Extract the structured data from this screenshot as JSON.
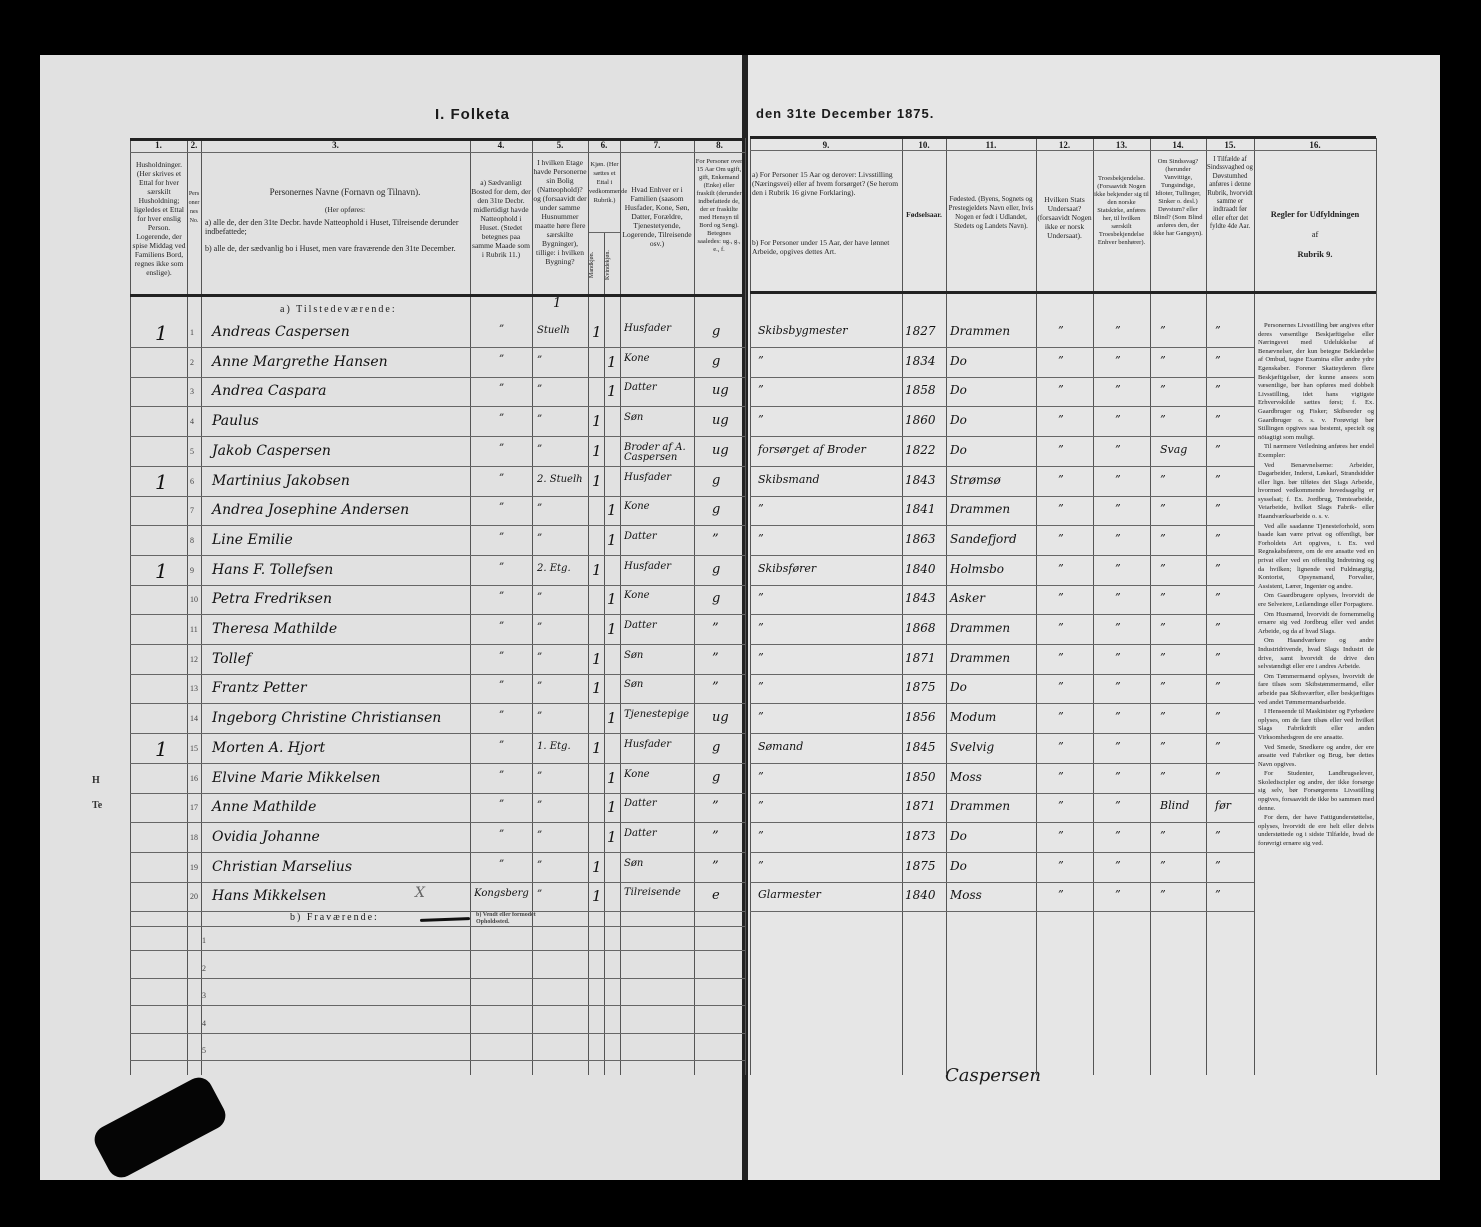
{
  "title": {
    "left": "I. Folketa",
    "right": "den 31te December 1875."
  },
  "columns": {
    "numbers": [
      "1.",
      "2.",
      "3.",
      "4.",
      "5.",
      "6.",
      "7.",
      "8.",
      "9.",
      "10.",
      "11.",
      "12.",
      "13.",
      "14.",
      "15.",
      "16."
    ],
    "col1": "Husholdninger. (Her skrives et Ettal for hver særskilt Husholdning; ligeledes et Ettal for hver enslig Person. Logerende, der spise Middag ved Familiens Bord, regnes ikke som enslige).",
    "col2": "Personernes No.",
    "col3_title": "Personernes Navne (Fornavn og Tilnavn).",
    "col3_sub": "(Her opføres:",
    "col3_a": "a) alle de, der den 31te Decbr. havde Natteophold i Huset, Tilreisende derunder indbefattede;",
    "col3_b": "b) alle de, der sædvanlig bo i Huset, men vare fraværende den 31te December.",
    "col4": "a) Sædvanligt Bosted for dem, der den 31te Decbr. midlertidigt havde Natteophold i Huset. (Stedet betegnes paa samme Maade som i Rubrik 11.)",
    "col5": "I hvilken Etage havde Personerne sin Bolig (Natteophold)? og (forsaavidt der under samme Husnummer maatte høre flere særskilte Bygninger), tillige: i hvilken Bygning?",
    "col6": "Kjøn. (Her sættes et Ettal i vedkommende Rubrik.)",
    "col6_male": "Mandkjøn.",
    "col6_female": "Kvindekjøn.",
    "col7": "Hvad Enhver er i Familien (saasom Husfader, Kone, Søn, Datter, Forældre, Tjenestetyende, Logerende, Tilreisende osv.)",
    "col8": "For Personer over 15 Aar Om ugift, gift, Enkemand (Enke) eller fraskilt (derunder indbefattede de, der er fraskilte med Hensyn til Bord og Seng). Betegnes saaledes: ug., g., e., f.",
    "col9_a": "a) For Personer 15 Aar og derover: Livsstilling (Næringsvei) eller af hvem forsørget? (Se herom den i Rubrik 16 givne Forklaring).",
    "col9_b": "b) For Personer under 15 Aar, der have lønnet Arbeide, opgives dettes Art.",
    "col10": "Fødselsaar.",
    "col11": "Fødested. (Byens, Sognets og Prestegjeldets Navn eller, hvis Nogen er født i Udlandet, Stedets og Landets Navn).",
    "col12": "Hvilken Stats Undersaat? (forsaavidt Nogen ikke er norsk Undersaat).",
    "col13": "Troesbekjendelse. (Forsaavidt Nogen ikke bekjender sig til den norske Statskirke, anføres her, til hvilken særskilt Troesbekjendelse Enhver benhører).",
    "col14": "Om Sindssvag? (herunder Vanvittige, Tungsindige, Idioter, Tullinger, Sinker o. desl.) Døvstum? eller Blind? (Som Blind anføres den, der ikke har Gangsyn).",
    "col15": "I Tilfælde af Sindssvaghed og Døvstumhed anføres i denne Rubrik, hvorvidt samme er indtraadt før eller efter det fyldte 4de Aar.",
    "col16_title": "Regler for Udfyldningen",
    "col16_of": "af",
    "col16_rubrik": "Rubrik 9."
  },
  "sections": {
    "present": "a) Tilstedeværende:",
    "absent": "b) Fraværende:",
    "absent_note": "b) Vendt eller formodet Opholdssted."
  },
  "present_top_mark": "1",
  "rows": [
    {
      "no": "1",
      "hh": "1",
      "name": "Andreas Caspersen",
      "c4": "”",
      "c5": "Stuelh",
      "m": "1",
      "f": "",
      "rel": "Husfader",
      "civ": "g",
      "occ": "Skibsbygmester",
      "year": "1827",
      "place": "Drammen",
      "c12": "”",
      "c13": "”",
      "c14": "”",
      "c15": "”"
    },
    {
      "no": "2",
      "hh": "",
      "name": "Anne Margrethe Hansen",
      "c4": "”",
      "c5": "”",
      "m": "",
      "f": "1",
      "rel": "Kone",
      "civ": "g",
      "occ": "”",
      "year": "1834",
      "place": "Do",
      "c12": "”",
      "c13": "”",
      "c14": "”",
      "c15": "”"
    },
    {
      "no": "3",
      "hh": "",
      "name": "Andrea Caspara",
      "c4": "”",
      "c5": "”",
      "m": "",
      "f": "1",
      "rel": "Datter",
      "civ": "ug",
      "occ": "”",
      "year": "1858",
      "place": "Do",
      "c12": "”",
      "c13": "”",
      "c14": "”",
      "c15": "”"
    },
    {
      "no": "4",
      "hh": "",
      "name": "Paulus",
      "c4": "”",
      "c5": "”",
      "m": "1",
      "f": "",
      "rel": "Søn",
      "civ": "ug",
      "occ": "”",
      "year": "1860",
      "place": "Do",
      "c12": "”",
      "c13": "”",
      "c14": "”",
      "c15": "”"
    },
    {
      "no": "5",
      "hh": "",
      "name": "Jakob Caspersen",
      "c4": "”",
      "c5": "”",
      "m": "1",
      "f": "",
      "rel": "Broder af A. Caspersen",
      "civ": "ug",
      "occ": "forsørget af Broder",
      "year": "1822",
      "place": "Do",
      "c12": "”",
      "c13": "”",
      "c14": "Svag",
      "c15": "”"
    },
    {
      "no": "6",
      "hh": "1",
      "name": "Martinius Jakobsen",
      "c4": "”",
      "c5": "2. Stuelh",
      "m": "1",
      "f": "",
      "rel": "Husfader",
      "civ": "g",
      "occ": "Skibsmand",
      "year": "1843",
      "place": "Strømsø",
      "c12": "”",
      "c13": "”",
      "c14": "”",
      "c15": "”"
    },
    {
      "no": "7",
      "hh": "",
      "name": "Andrea Josephine Andersen",
      "c4": "”",
      "c5": "”",
      "m": "",
      "f": "1",
      "rel": "Kone",
      "civ": "g",
      "occ": "”",
      "year": "1841",
      "place": "Drammen",
      "c12": "”",
      "c13": "”",
      "c14": "”",
      "c15": "”"
    },
    {
      "no": "8",
      "hh": "",
      "name": "Line Emilie",
      "c4": "”",
      "c5": "”",
      "m": "",
      "f": "1",
      "rel": "Datter",
      "civ": "”",
      "occ": "”",
      "year": "1863",
      "place": "Sandefjord",
      "c12": "”",
      "c13": "”",
      "c14": "”",
      "c15": "”"
    },
    {
      "no": "9",
      "hh": "1",
      "name": "Hans F. Tollefsen",
      "c4": "”",
      "c5": "2. Etg.",
      "m": "1",
      "f": "",
      "rel": "Husfader",
      "civ": "g",
      "occ": "Skibsfører",
      "year": "1840",
      "place": "Holmsbo",
      "c12": "”",
      "c13": "”",
      "c14": "”",
      "c15": "”"
    },
    {
      "no": "10",
      "hh": "",
      "name": "Petra Fredriksen",
      "c4": "”",
      "c5": "”",
      "m": "",
      "f": "1",
      "rel": "Kone",
      "civ": "g",
      "occ": "”",
      "year": "1843",
      "place": "Asker",
      "c12": "”",
      "c13": "”",
      "c14": "”",
      "c15": "”"
    },
    {
      "no": "11",
      "hh": "",
      "name": "Theresa Mathilde",
      "c4": "”",
      "c5": "”",
      "m": "",
      "f": "1",
      "rel": "Datter",
      "civ": "”",
      "occ": "”",
      "year": "1868",
      "place": "Drammen",
      "c12": "”",
      "c13": "”",
      "c14": "”",
      "c15": "”"
    },
    {
      "no": "12",
      "hh": "",
      "name": "Tollef",
      "c4": "”",
      "c5": "”",
      "m": "1",
      "f": "",
      "rel": "Søn",
      "civ": "”",
      "occ": "”",
      "year": "1871",
      "place": "Drammen",
      "c12": "”",
      "c13": "”",
      "c14": "”",
      "c15": "”"
    },
    {
      "no": "13",
      "hh": "",
      "name": "Frantz Petter",
      "c4": "”",
      "c5": "”",
      "m": "1",
      "f": "",
      "rel": "Søn",
      "civ": "”",
      "occ": "”",
      "year": "1875",
      "place": "Do",
      "c12": "”",
      "c13": "”",
      "c14": "”",
      "c15": "”"
    },
    {
      "no": "14",
      "hh": "",
      "name": "Ingeborg Christine Christiansen",
      "c4": "”",
      "c5": "”",
      "m": "",
      "f": "1",
      "rel": "Tjenestepige",
      "civ": "ug",
      "occ": "”",
      "year": "1856",
      "place": "Modum",
      "c12": "”",
      "c13": "”",
      "c14": "”",
      "c15": "”"
    },
    {
      "no": "15",
      "hh": "1",
      "name": "Morten A. Hjort",
      "c4": "”",
      "c5": "1. Etg.",
      "m": "1",
      "f": "",
      "rel": "Husfader",
      "civ": "g",
      "occ": "Sømand",
      "year": "1845",
      "place": "Svelvig",
      "c12": "”",
      "c13": "”",
      "c14": "”",
      "c15": "”"
    },
    {
      "no": "16",
      "hh": "",
      "name": "Elvine Marie Mikkelsen",
      "c4": "”",
      "c5": "”",
      "m": "",
      "f": "1",
      "rel": "Kone",
      "civ": "g",
      "occ": "”",
      "year": "1850",
      "place": "Moss",
      "c12": "”",
      "c13": "”",
      "c14": "”",
      "c15": "”"
    },
    {
      "no": "17",
      "hh": "",
      "name": "Anne Mathilde",
      "c4": "”",
      "c5": "”",
      "m": "",
      "f": "1",
      "rel": "Datter",
      "civ": "”",
      "occ": "”",
      "year": "1871",
      "place": "Drammen",
      "c12": "”",
      "c13": "”",
      "c14": "Blind",
      "c15": "før"
    },
    {
      "no": "18",
      "hh": "",
      "name": "Ovidia Johanne",
      "c4": "”",
      "c5": "”",
      "m": "",
      "f": "1",
      "rel": "Datter",
      "civ": "”",
      "occ": "”",
      "year": "1873",
      "place": "Do",
      "c12": "”",
      "c13": "”",
      "c14": "”",
      "c15": "”"
    },
    {
      "no": "19",
      "hh": "",
      "name": "Christian Marselius",
      "c4": "”",
      "c5": "”",
      "m": "1",
      "f": "",
      "rel": "Søn",
      "civ": "”",
      "occ": "”",
      "year": "1875",
      "place": "Do",
      "c12": "”",
      "c13": "”",
      "c14": "”",
      "c15": "”"
    },
    {
      "no": "20",
      "hh": "",
      "name": "Hans Mikkelsen",
      "c4": "Kongsberg",
      "c5": "”",
      "m": "1",
      "f": "",
      "rel": "Tilreisende",
      "civ": "e",
      "occ": "Glarmester",
      "year": "1840",
      "place": "Moss",
      "c12": "”",
      "c13": "”",
      "c14": "”",
      "c15": "”"
    }
  ],
  "row20_mark": "X",
  "absent_rows": [
    "1",
    "2",
    "3",
    "4",
    "5"
  ],
  "rules": [
    "Personernes Livsstilling bør angives efter deres væsentlige Beskjæftigelse eller Næringsvei med Udelukkelse af Benævnelser, der kun betegne Beklædelse af Ombud, tagne Examina eller andre ydre Egenskaber. Forener Skatteyderen flere Beskjæftigelser, der kunne ansees som væsentlige, bør han opføres med dobbelt Livsstilling, idet hans vigtigste Erhvervskilde sættes først; f. Ex. Gaardbruger og Fisker; Skibsreder og Gaardbruger o. s. v. Forøvrigt bør Stillingen opgives saa bestemt, specielt og nöiagtigt som muligt.",
    "Til nærmere Veiledning anføres her endel Exempler:",
    "Ved Benævnelserne: Arbeider, Dagarbeider, Inderst, Løskarl, Strandsidder eller lign. bør tilføies det Slags Arbeide, hvormed vedkommende hovedsagelig er sysselsat; f. Ex. Jordbrug, Tomtearbeide, Veiarbeide, hvilket Slags Fabrik- eller Haandværksarbeide o. s. v.",
    "Ved alle saadanne Tjenesteforhold, som baade kan være privat og offentligt, bør Forholdets Art opgives, t. Ex. ved Regnskabsførere, om de ere ansatte ved en privat eller ved en offentlig Indretning og da hvilken; lignende ved Fuldmægtig, Kontorist, Opsynsmand, Forvalter, Assistent, Lærer, Ingeniør og andre.",
    "Om Gaardbrugere oplyses, hvorvidt de ere Selveiere, Leilændinge eller Forpagtere.",
    "Om Husmænd, hvorvidt de fornemmelig ernære sig ved Jordbrug eller ved andet Arbeide, og da af hvad Slags.",
    "Om Haandværkere og andre Industridrivende, hvad Slags Industri de drive, samt hvorvidt de drive den selvstændigt eller ere i andres Arbeide.",
    "Om Tømmermænd oplyses, hvorvidt de fare tilsøs som Skibstømmermænd, eller arbeide paa Skibsværfter, eller beskjæftiges ved andet Tømmermandsarbeide.",
    "I Henseende til Maskinister og Fyrbødere oplyses, om de fare tilsøs eller ved hvilket Slags Fabrikdrift eller anden Virksomhedsgren de ere ansatte.",
    "Ved Smede, Snedkere og andre, der ere ansatte ved Fabriker og Brug, bør dettes Navn opgives.",
    "For Studenter, Landbrugselever, Skolediscipler og andre, der ikke forsørge sig selv, bør Forsørgerens Livsstilling opgives, forsaavidt de ikke bo sammen med denne.",
    "For dem, der have Fattigunderstøttelse, oplyses, hvorvidt de ere helt eller delvis understøttede og i sidste Tilfælde, hvad de forøvrigt ernære sig ved."
  ],
  "signature": "Caspersen",
  "edge_marks": [
    "H",
    "Te"
  ]
}
